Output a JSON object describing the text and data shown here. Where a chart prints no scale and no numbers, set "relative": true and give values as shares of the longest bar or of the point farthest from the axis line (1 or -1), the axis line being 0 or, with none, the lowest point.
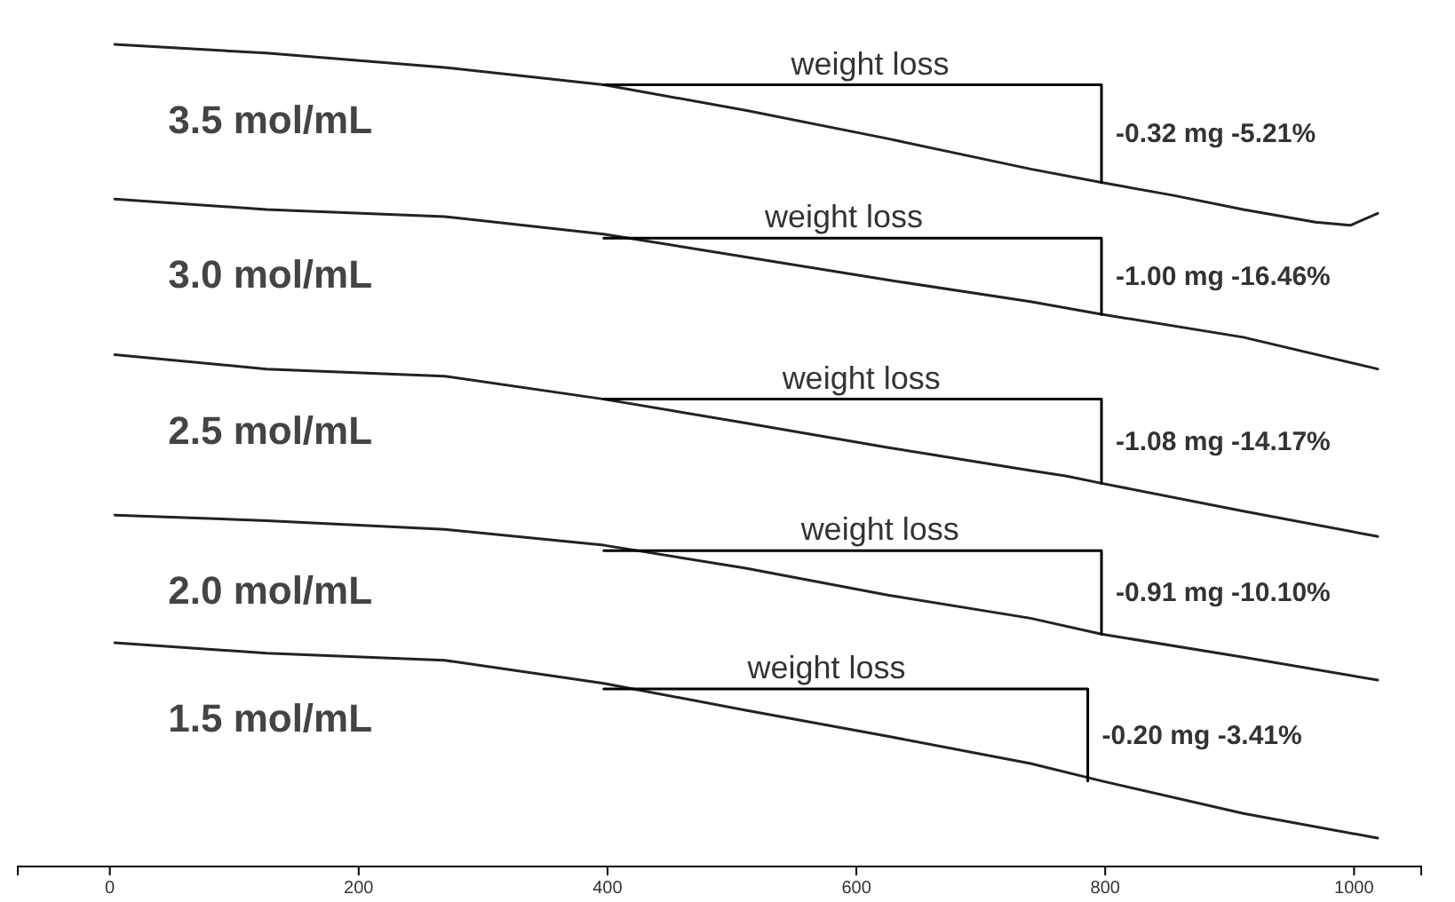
{
  "chart_data": {
    "type": "line",
    "relative": true,
    "xlim": [
      -74,
      1054
    ],
    "xticks": [
      0,
      200,
      400,
      600,
      800,
      1000
    ],
    "grid": false,
    "tick_labels": "x",
    "line_style": "solid",
    "marker": "none",
    "series": [
      {
        "name": "3.5 mol/mL",
        "color": "#222222",
        "x": [
          4,
          126,
          269,
          397,
          511,
          626,
          740,
          797,
          854,
          911,
          969,
          997,
          1019
        ],
        "values": [
          1.0,
          0.989,
          0.971,
          0.949,
          0.917,
          0.881,
          0.843,
          0.826,
          0.81,
          0.792,
          0.776,
          0.772,
          0.787
        ]
      },
      {
        "name": "3.0 mol/mL",
        "color": "#222222",
        "x": [
          4,
          126,
          269,
          397,
          511,
          626,
          740,
          797,
          911,
          1019
        ],
        "values": [
          0.805,
          0.792,
          0.783,
          0.761,
          0.732,
          0.703,
          0.676,
          0.66,
          0.631,
          0.591
        ]
      },
      {
        "name": "2.5 mol/mL",
        "color": "#222222",
        "x": [
          4,
          126,
          269,
          397,
          511,
          626,
          740,
          769,
          797,
          911,
          1019
        ],
        "values": [
          0.609,
          0.591,
          0.582,
          0.553,
          0.523,
          0.492,
          0.463,
          0.456,
          0.447,
          0.412,
          0.38
        ]
      },
      {
        "name": "2.0 mol/mL",
        "color": "#222222",
        "x": [
          4,
          126,
          269,
          397,
          511,
          626,
          740,
          797,
          911,
          1019
        ],
        "values": [
          0.407,
          0.4,
          0.389,
          0.369,
          0.34,
          0.306,
          0.277,
          0.257,
          0.228,
          0.199
        ]
      },
      {
        "name": "1.5 mol/mL",
        "color": "#222222",
        "x": [
          4,
          126,
          269,
          397,
          511,
          626,
          740,
          797,
          911,
          1019
        ],
        "values": [
          0.246,
          0.233,
          0.224,
          0.195,
          0.161,
          0.128,
          0.094,
          0.072,
          0.031,
          0
        ]
      },
      {
        "color": "#000000",
        "x": [
          397,
          797,
          797
        ],
        "values": [
          0.949,
          0.949,
          0.826
        ]
      },
      {
        "color": "#000000",
        "x": [
          397,
          797,
          797
        ],
        "values": [
          0.756,
          0.756,
          0.66
        ]
      },
      {
        "color": "#000000",
        "x": [
          397,
          797,
          797
        ],
        "values": [
          0.553,
          0.553,
          0.447
        ]
      },
      {
        "color": "#000000",
        "x": [
          397,
          797,
          797
        ],
        "values": [
          0.362,
          0.362,
          0.257
        ]
      },
      {
        "color": "#000000",
        "x": [
          397,
          786,
          786
        ],
        "values": [
          0.188,
          0.188,
          0.072
        ]
      }
    ],
    "annotations": [
      {
        "text": "weight loss",
        "x": 611,
        "y": 0.949
      },
      {
        "text": "-0.32 mg -5.21%",
        "x": 797,
        "y": 0.888
      },
      {
        "text": "weight loss",
        "x": 590,
        "y": 0.756
      },
      {
        "text": "-1.00 mg -16.46%",
        "x": 797,
        "y": 0.708
      },
      {
        "text": "weight loss",
        "x": 604,
        "y": 0.553
      },
      {
        "text": "-1.08 mg -14.17%",
        "x": 797,
        "y": 0.5
      },
      {
        "text": "weight loss",
        "x": 619,
        "y": 0.362
      },
      {
        "text": "-0.91 mg -10.10%",
        "x": 797,
        "y": 0.31
      },
      {
        "text": "weight loss",
        "x": 576,
        "y": 0.188
      },
      {
        "text": "-0.20 mg -3.41%",
        "x": 786,
        "y": 0.13
      }
    ]
  }
}
